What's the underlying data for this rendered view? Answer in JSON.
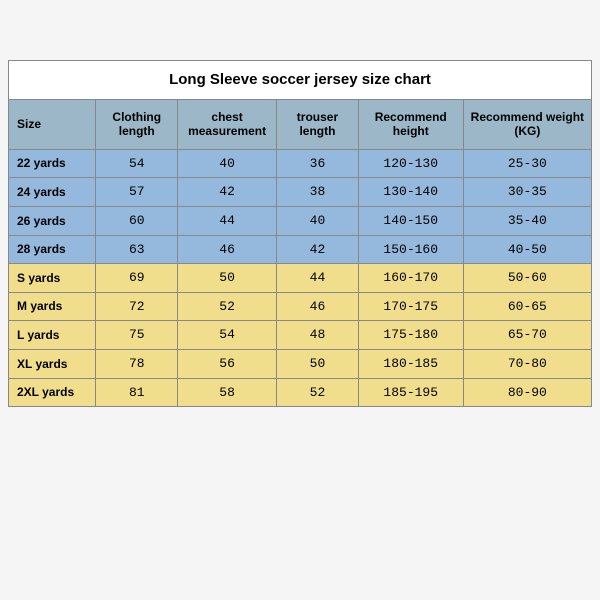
{
  "title": "Long Sleeve soccer jersey size chart",
  "columns": [
    "Size",
    "Clothing length",
    "chest measurement",
    "trouser length",
    "Recommend height",
    "Recommend weight (KG)"
  ],
  "col_widths_pct": [
    15,
    14,
    17,
    14,
    18,
    22
  ],
  "header_bg": "#9bb7c8",
  "group_colors": {
    "blue": "#95b9dc",
    "yellow": "#f1de8c"
  },
  "rows": [
    {
      "cells": [
        "22 yards",
        "54",
        "40",
        "36",
        "120-130",
        "25-30"
      ],
      "group": "blue"
    },
    {
      "cells": [
        "24 yards",
        "57",
        "42",
        "38",
        "130-140",
        "30-35"
      ],
      "group": "blue"
    },
    {
      "cells": [
        "26 yards",
        "60",
        "44",
        "40",
        "140-150",
        "35-40"
      ],
      "group": "blue"
    },
    {
      "cells": [
        "28 yards",
        "63",
        "46",
        "42",
        "150-160",
        "40-50"
      ],
      "group": "blue"
    },
    {
      "cells": [
        "S yards",
        "69",
        "50",
        "44",
        "160-170",
        "50-60"
      ],
      "group": "yellow"
    },
    {
      "cells": [
        "M yards",
        "72",
        "52",
        "46",
        "170-175",
        "60-65"
      ],
      "group": "yellow"
    },
    {
      "cells": [
        "L yards",
        "75",
        "54",
        "48",
        "175-180",
        "65-70"
      ],
      "group": "yellow"
    },
    {
      "cells": [
        "XL yards",
        "78",
        "56",
        "50",
        "180-185",
        "70-80"
      ],
      "group": "yellow"
    },
    {
      "cells": [
        "2XL yards",
        "81",
        "58",
        "52",
        "185-195",
        "80-90"
      ],
      "group": "yellow"
    }
  ]
}
